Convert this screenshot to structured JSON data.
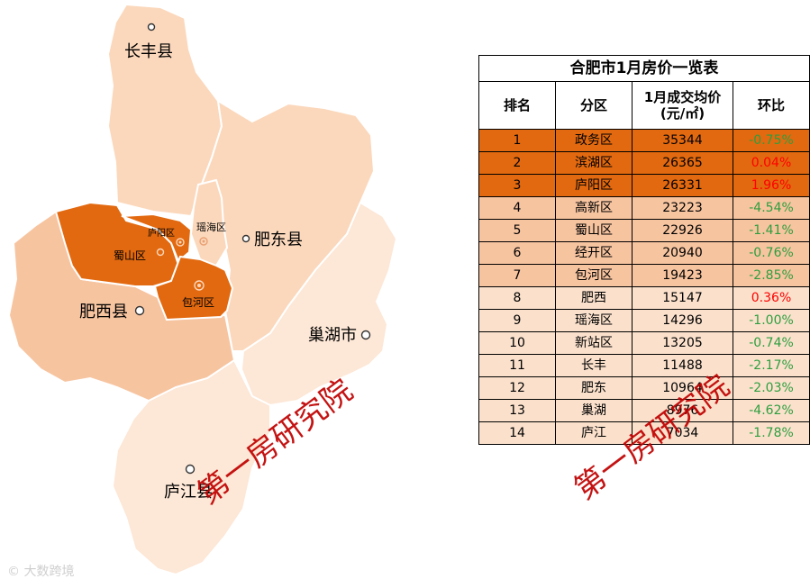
{
  "table": {
    "title": "合肥市1月房价一览表",
    "headers": {
      "rank": "排名",
      "district": "分区",
      "price_line1": "1月成交均价",
      "price_line2": "(元/㎡)",
      "change": "环比"
    },
    "rows": [
      {
        "rank": "1",
        "district": "政务区",
        "price": "35344",
        "change": "-0.75%",
        "tier": "top"
      },
      {
        "rank": "2",
        "district": "滨湖区",
        "price": "26365",
        "change": "0.04%",
        "tier": "top"
      },
      {
        "rank": "3",
        "district": "庐阳区",
        "price": "26331",
        "change": "1.96%",
        "tier": "top"
      },
      {
        "rank": "4",
        "district": "高新区",
        "price": "23223",
        "change": "-4.54%",
        "tier": "mid"
      },
      {
        "rank": "5",
        "district": "蜀山区",
        "price": "22926",
        "change": "-1.41%",
        "tier": "mid"
      },
      {
        "rank": "6",
        "district": "经开区",
        "price": "20940",
        "change": "-0.76%",
        "tier": "mid"
      },
      {
        "rank": "7",
        "district": "包河区",
        "price": "19423",
        "change": "-2.85%",
        "tier": "mid"
      },
      {
        "rank": "8",
        "district": "肥西",
        "price": "15147",
        "change": "0.36%",
        "tier": "low"
      },
      {
        "rank": "9",
        "district": "瑶海区",
        "price": "14296",
        "change": "-1.00%",
        "tier": "low"
      },
      {
        "rank": "10",
        "district": "新站区",
        "price": "13205",
        "change": "-0.74%",
        "tier": "low"
      },
      {
        "rank": "11",
        "district": "长丰",
        "price": "11488",
        "change": "-2.17%",
        "tier": "low"
      },
      {
        "rank": "12",
        "district": "肥东",
        "price": "10964",
        "change": "-2.03%",
        "tier": "low"
      },
      {
        "rank": "13",
        "district": "巢湖",
        "price": "8976",
        "change": "-4.62%",
        "tier": "low"
      },
      {
        "rank": "14",
        "district": "庐江",
        "price": "7034",
        "change": "-1.78%",
        "tier": "low"
      }
    ]
  },
  "map": {
    "labels": {
      "changfeng": "长丰县",
      "feidong": "肥东县",
      "feixi": "肥西县",
      "chaohu": "巢湖市",
      "lujiang": "庐江县",
      "shushan": "蜀山区",
      "luyang": "庐阳区",
      "yaohai": "瑶海区",
      "baohe": "包河区"
    }
  },
  "watermark": "第一房研究院",
  "brand": "大数跨境",
  "colors": {
    "dark_orange": "#e2690f",
    "medium_orange": "#f7c4a0",
    "light_orange": "#fbe1cc",
    "negative_change": "#2e9e3f",
    "positive_change": "#ff0000",
    "watermark": "#c00000"
  }
}
